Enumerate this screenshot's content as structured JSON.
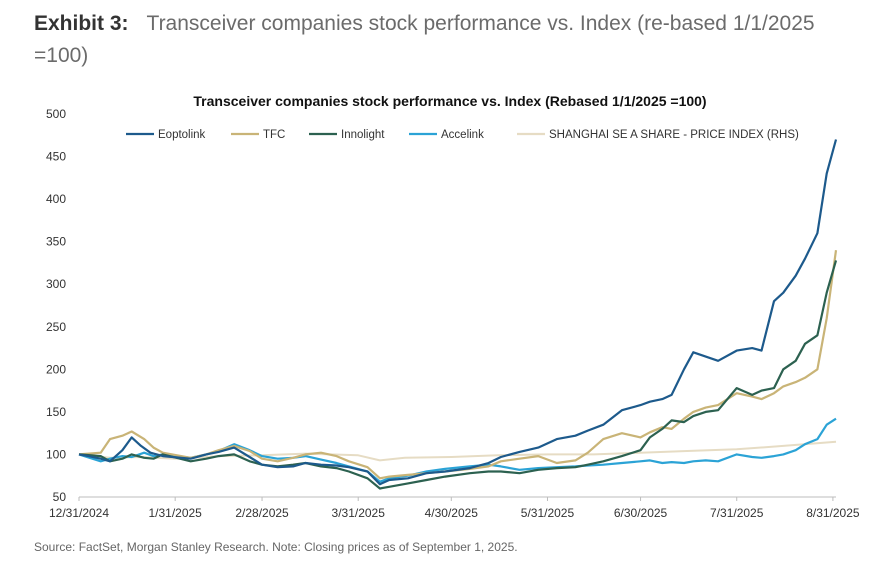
{
  "exhibit": {
    "label": "Exhibit 3:",
    "title": "Transceiver companies stock performance vs. Index (re-based 1/1/2025 =100)"
  },
  "source_note": "Source: FactSet, Morgan Stanley Research. Note: Closing prices as of September 1, 2025.",
  "colors": {
    "Eoptolink": "#1d5a8c",
    "TFC": "#c9b477",
    "Innolight": "#2c6150",
    "Accelink": "#2ba3d6",
    "SHANGHAI SE A SHARE - PRICE INDEX (RHS)": "#e6dcc4"
  },
  "chart_data": {
    "type": "line",
    "title": "Transceiver companies stock performance vs. Index (Rebased 1/1/2025 =100)",
    "xlabel": "",
    "ylabel": "",
    "ylim": [
      50,
      500
    ],
    "yticks": [
      50,
      100,
      150,
      200,
      250,
      300,
      350,
      400,
      450,
      500
    ],
    "xticks": [
      "12/31/2024",
      "1/31/2025",
      "2/28/2025",
      "3/31/2025",
      "4/30/2025",
      "5/31/2025",
      "6/30/2025",
      "7/31/2025",
      "8/31/2025"
    ],
    "grid": false,
    "legend_position": "top",
    "series": [
      {
        "name": "Eoptolink",
        "x": [
          "2024-12-31",
          "2025-01-03",
          "2025-01-07",
          "2025-01-10",
          "2025-01-14",
          "2025-01-17",
          "2025-01-20",
          "2025-01-23",
          "2025-01-27",
          "2025-02-05",
          "2025-02-10",
          "2025-02-14",
          "2025-02-19",
          "2025-02-24",
          "2025-02-28",
          "2025-03-05",
          "2025-03-10",
          "2025-03-14",
          "2025-03-19",
          "2025-03-24",
          "2025-03-28",
          "2025-04-03",
          "2025-04-07",
          "2025-04-10",
          "2025-04-16",
          "2025-04-22",
          "2025-04-28",
          "2025-05-06",
          "2025-05-12",
          "2025-05-16",
          "2025-05-22",
          "2025-05-28",
          "2025-06-03",
          "2025-06-09",
          "2025-06-13",
          "2025-06-18",
          "2025-06-24",
          "2025-06-30",
          "2025-07-03",
          "2025-07-07",
          "2025-07-10",
          "2025-07-14",
          "2025-07-17",
          "2025-07-21",
          "2025-07-25",
          "2025-07-31",
          "2025-08-05",
          "2025-08-08",
          "2025-08-12",
          "2025-08-15",
          "2025-08-19",
          "2025-08-22",
          "2025-08-26",
          "2025-08-29",
          "2025-09-01"
        ],
        "values": [
          100,
          98,
          95,
          92,
          105,
          120,
          110,
          102,
          98,
          95,
          100,
          103,
          108,
          97,
          88,
          85,
          86,
          90,
          88,
          87,
          85,
          80,
          65,
          70,
          72,
          78,
          80,
          84,
          90,
          97,
          103,
          108,
          118,
          122,
          128,
          135,
          152,
          158,
          162,
          165,
          170,
          200,
          220,
          215,
          210,
          222,
          225,
          222,
          280,
          290,
          310,
          330,
          360,
          430,
          470
        ]
      },
      {
        "name": "TFC",
        "x": [
          "2024-12-31",
          "2025-01-07",
          "2025-01-10",
          "2025-01-14",
          "2025-01-17",
          "2025-01-21",
          "2025-01-24",
          "2025-01-27",
          "2025-02-05",
          "2025-02-10",
          "2025-02-14",
          "2025-02-19",
          "2025-02-24",
          "2025-02-28",
          "2025-03-05",
          "2025-03-10",
          "2025-03-14",
          "2025-03-19",
          "2025-03-24",
          "2025-03-28",
          "2025-04-03",
          "2025-04-07",
          "2025-04-10",
          "2025-04-16",
          "2025-04-22",
          "2025-04-28",
          "2025-05-06",
          "2025-05-12",
          "2025-05-16",
          "2025-05-22",
          "2025-05-28",
          "2025-06-03",
          "2025-06-09",
          "2025-06-13",
          "2025-06-18",
          "2025-06-24",
          "2025-06-30",
          "2025-07-03",
          "2025-07-07",
          "2025-07-10",
          "2025-07-14",
          "2025-07-17",
          "2025-07-21",
          "2025-07-25",
          "2025-07-31",
          "2025-08-05",
          "2025-08-08",
          "2025-08-12",
          "2025-08-15",
          "2025-08-19",
          "2025-08-22",
          "2025-08-26",
          "2025-08-29",
          "2025-09-01"
        ],
        "values": [
          100,
          102,
          118,
          122,
          127,
          118,
          108,
          102,
          96,
          100,
          105,
          110,
          104,
          95,
          92,
          96,
          100,
          102,
          98,
          92,
          85,
          72,
          74,
          76,
          78,
          80,
          83,
          86,
          92,
          95,
          98,
          90,
          93,
          102,
          118,
          125,
          120,
          126,
          132,
          130,
          142,
          150,
          155,
          158,
          172,
          168,
          165,
          172,
          180,
          185,
          190,
          200,
          260,
          340
        ]
      },
      {
        "name": "Innolight",
        "x": [
          "2024-12-31",
          "2025-01-07",
          "2025-01-10",
          "2025-01-14",
          "2025-01-17",
          "2025-01-21",
          "2025-01-24",
          "2025-01-27",
          "2025-02-05",
          "2025-02-10",
          "2025-02-14",
          "2025-02-19",
          "2025-02-24",
          "2025-02-28",
          "2025-03-05",
          "2025-03-10",
          "2025-03-14",
          "2025-03-19",
          "2025-03-24",
          "2025-03-28",
          "2025-04-03",
          "2025-04-07",
          "2025-04-10",
          "2025-04-16",
          "2025-04-22",
          "2025-04-28",
          "2025-05-06",
          "2025-05-12",
          "2025-05-16",
          "2025-05-22",
          "2025-05-28",
          "2025-06-03",
          "2025-06-09",
          "2025-06-13",
          "2025-06-18",
          "2025-06-24",
          "2025-06-30",
          "2025-07-03",
          "2025-07-07",
          "2025-07-10",
          "2025-07-14",
          "2025-07-17",
          "2025-07-21",
          "2025-07-25",
          "2025-07-31",
          "2025-08-05",
          "2025-08-08",
          "2025-08-12",
          "2025-08-15",
          "2025-08-19",
          "2025-08-22",
          "2025-08-26",
          "2025-08-29",
          "2025-09-01"
        ],
        "values": [
          100,
          98,
          92,
          95,
          100,
          96,
          95,
          100,
          92,
          95,
          98,
          100,
          92,
          88,
          86,
          88,
          90,
          86,
          84,
          80,
          72,
          60,
          62,
          66,
          70,
          74,
          78,
          80,
          80,
          78,
          82,
          84,
          85,
          88,
          92,
          98,
          105,
          120,
          130,
          140,
          138,
          145,
          150,
          152,
          178,
          170,
          175,
          178,
          200,
          210,
          230,
          240,
          290,
          328
        ]
      },
      {
        "name": "Accelink",
        "x": [
          "2024-12-31",
          "2025-01-07",
          "2025-01-10",
          "2025-01-14",
          "2025-01-17",
          "2025-01-21",
          "2025-01-24",
          "2025-01-27",
          "2025-02-05",
          "2025-02-10",
          "2025-02-14",
          "2025-02-19",
          "2025-02-24",
          "2025-02-28",
          "2025-03-05",
          "2025-03-10",
          "2025-03-14",
          "2025-03-19",
          "2025-03-24",
          "2025-03-28",
          "2025-04-03",
          "2025-04-07",
          "2025-04-10",
          "2025-04-16",
          "2025-04-22",
          "2025-04-28",
          "2025-05-06",
          "2025-05-12",
          "2025-05-16",
          "2025-05-22",
          "2025-05-28",
          "2025-06-03",
          "2025-06-09",
          "2025-06-13",
          "2025-06-18",
          "2025-06-24",
          "2025-06-30",
          "2025-07-03",
          "2025-07-07",
          "2025-07-10",
          "2025-07-14",
          "2025-07-17",
          "2025-07-21",
          "2025-07-25",
          "2025-07-31",
          "2025-08-05",
          "2025-08-08",
          "2025-08-12",
          "2025-08-15",
          "2025-08-19",
          "2025-08-22",
          "2025-08-26",
          "2025-08-29",
          "2025-09-01"
        ],
        "values": [
          100,
          92,
          95,
          98,
          97,
          102,
          98,
          100,
          96,
          100,
          104,
          112,
          105,
          98,
          95,
          96,
          98,
          94,
          90,
          86,
          80,
          68,
          72,
          75,
          80,
          83,
          86,
          88,
          86,
          82,
          84,
          85,
          86,
          87,
          88,
          90,
          92,
          93,
          90,
          91,
          90,
          92,
          93,
          92,
          100,
          97,
          96,
          98,
          100,
          105,
          112,
          118,
          135,
          142
        ]
      },
      {
        "name": "SHANGHAI SE A SHARE - PRICE INDEX (RHS)",
        "x": [
          "2024-12-31",
          "2025-01-10",
          "2025-01-20",
          "2025-01-31",
          "2025-02-14",
          "2025-02-28",
          "2025-03-14",
          "2025-03-31",
          "2025-04-07",
          "2025-04-15",
          "2025-04-30",
          "2025-05-15",
          "2025-05-31",
          "2025-06-15",
          "2025-06-30",
          "2025-07-15",
          "2025-07-31",
          "2025-08-15",
          "2025-09-01"
        ],
        "values": [
          100,
          96,
          97,
          95,
          98,
          99,
          101,
          99,
          93,
          96,
          97,
          99,
          100,
          100,
          102,
          104,
          106,
          110,
          115
        ]
      }
    ]
  }
}
